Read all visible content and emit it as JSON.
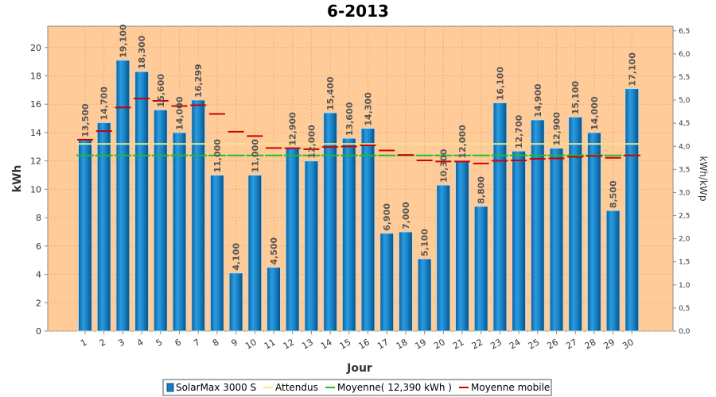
{
  "chart_data": {
    "type": "bar",
    "title": "6-2013",
    "xlabel": "Jour",
    "ylabel": "kWh",
    "y2label": "kWh/kWp",
    "ylim": [
      0,
      21.5
    ],
    "y2lim": [
      0,
      6.6
    ],
    "yticks": [
      "0",
      "2",
      "4",
      "6",
      "8",
      "10",
      "12",
      "14",
      "16",
      "18",
      "20"
    ],
    "y2ticks": [
      "0,0",
      "0,5",
      "1,0",
      "1,5",
      "2,0",
      "2,5",
      "3,0",
      "3,5",
      "4,0",
      "4,5",
      "5,0",
      "5,5",
      "6,0",
      "6,5"
    ],
    "categories": [
      "1",
      "2",
      "3",
      "4",
      "5",
      "6",
      "7",
      "8",
      "9",
      "10",
      "11",
      "12",
      "13",
      "14",
      "15",
      "16",
      "17",
      "18",
      "19",
      "20",
      "21",
      "22",
      "23",
      "24",
      "25",
      "26",
      "27",
      "28",
      "29",
      "30"
    ],
    "series": [
      {
        "name": "SolarMax 3000 S",
        "values": [
          13.5,
          14.7,
          19.1,
          18.3,
          15.6,
          14.0,
          16.299,
          11.0,
          4.1,
          11.0,
          4.5,
          12.9,
          12.0,
          15.4,
          13.6,
          14.3,
          6.9,
          7.0,
          5.1,
          10.3,
          12.0,
          8.8,
          16.1,
          12.7,
          14.9,
          12.9,
          15.1,
          14.0,
          8.5,
          17.1
        ],
        "labels": [
          "13,500",
          "14,700",
          "19,100",
          "18,300",
          "15,600",
          "14,000",
          "16,299",
          "11,000",
          "4,100",
          "11,000",
          "4,500",
          "12,900",
          "12,000",
          "15,400",
          "13,600",
          "14,300",
          "6,900",
          "7,000",
          "5,100",
          "10,300",
          "12,000",
          "8,800",
          "16,100",
          "12,700",
          "14,900",
          "12,900",
          "15,100",
          "14,000",
          "8,500",
          "17,100"
        ],
        "color": "#1a7dbf"
      },
      {
        "name": "Attendus",
        "values": [
          13.2,
          13.2,
          13.2,
          13.2,
          13.2,
          13.2,
          13.2,
          13.2,
          13.2,
          13.2,
          13.2,
          13.2,
          13.2,
          13.2,
          13.2,
          13.2,
          13.2,
          13.2,
          13.2,
          13.2,
          13.2,
          13.2,
          13.2,
          13.2,
          13.2,
          13.2,
          13.2,
          13.2,
          13.2,
          13.2
        ],
        "color": "#f0e68c"
      },
      {
        "name": "Moyenne( 12,390 kWh )",
        "values": [
          12.39,
          12.39,
          12.39,
          12.39,
          12.39,
          12.39,
          12.39,
          12.39,
          12.39,
          12.39,
          12.39,
          12.39,
          12.39,
          12.39,
          12.39,
          12.39,
          12.39,
          12.39,
          12.39,
          12.39,
          12.39,
          12.39,
          12.39,
          12.39,
          12.39,
          12.39,
          12.39,
          12.39,
          12.39,
          12.39
        ],
        "color": "#22bb22"
      },
      {
        "name": "Moyenne mobile",
        "values": [
          13.5,
          14.1,
          15.77,
          16.4,
          16.24,
          15.87,
          15.93,
          15.31,
          14.06,
          13.75,
          12.91,
          12.9,
          12.83,
          12.98,
          13.02,
          13.1,
          12.74,
          12.42,
          12.04,
          11.96,
          11.96,
          11.82,
          12.01,
          12.04,
          12.15,
          12.18,
          12.29,
          12.35,
          12.22,
          12.39
        ],
        "color": "#cc0000"
      }
    ],
    "grid": true,
    "legend_position": "bottom"
  },
  "legend": {
    "items": [
      {
        "label": "SolarMax 3000 S",
        "swatch": "bar",
        "color": "#1a7dbf"
      },
      {
        "label": "Attendus",
        "swatch": "line",
        "color": "#f0e68c"
      },
      {
        "label": "Moyenne( 12,390 kWh )",
        "swatch": "line",
        "color": "#22bb22"
      },
      {
        "label": "Moyenne mobile",
        "swatch": "line",
        "color": "#cc0000"
      }
    ]
  },
  "colors": {
    "plot_background": "#ffcc99",
    "page_background": "#ffffff"
  }
}
